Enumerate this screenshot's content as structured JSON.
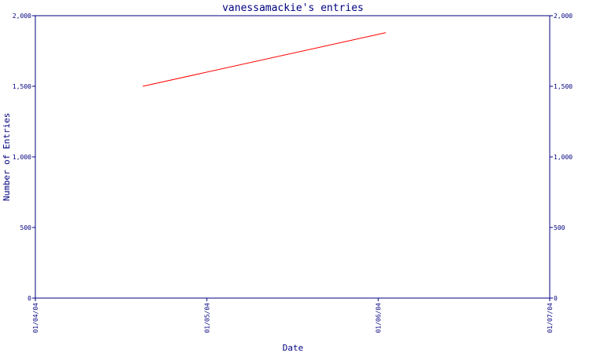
{
  "chart_data": {
    "type": "line",
    "title": "vanessamackie's entries",
    "xlabel": "Date",
    "ylabel": "Number of Entries",
    "x_ticks": [
      "01/04/04",
      "01/05/04",
      "01/06/04",
      "01/07/04"
    ],
    "y_ticks": [
      "0",
      "500",
      "1,000",
      "1,500",
      "2,000"
    ],
    "y_tick_values": [
      0,
      500,
      1000,
      1500,
      2000
    ],
    "ylim": [
      0,
      2000
    ],
    "xlim": [
      "2004-04-01",
      "2004-07-01"
    ],
    "series": [
      {
        "color": "#ff0000",
        "points": [
          {
            "x": "2004-04-20",
            "y": 1500
          },
          {
            "x": "2004-06-02",
            "y": 1880
          }
        ]
      }
    ],
    "axes": [
      "left",
      "right"
    ],
    "grid": false
  },
  "colors": {
    "axis": "#000080",
    "text": "#000080",
    "line": "#ff0000",
    "background": "#ffffff"
  }
}
